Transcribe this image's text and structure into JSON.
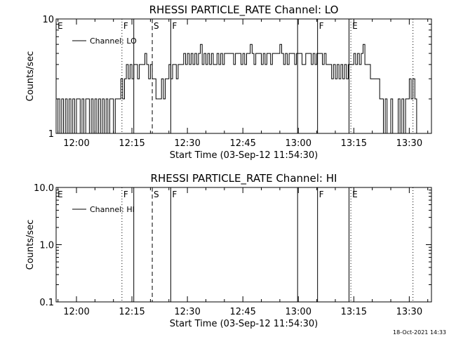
{
  "timestamp": "18-Oct-2021 14:33",
  "chart_data": [
    {
      "type": "line",
      "title": "RHESSI PARTICLE_RATE Channel: LO",
      "xlabel": "Start Time (03-Sep-12 11:54:30)",
      "ylabel": "Counts/sec",
      "x_ticks": [
        "12:00",
        "12:15",
        "12:30",
        "12:45",
        "13:00",
        "13:15",
        "13:30"
      ],
      "x_tick_minutes": [
        330,
        345,
        360,
        375,
        390,
        405,
        420
      ],
      "xlim_minutes": [
        324.5,
        426
      ],
      "y_scale": "log",
      "ylim": [
        1,
        10
      ],
      "y_ticks": [
        "1",
        "10"
      ],
      "y_tick_values": [
        1,
        10
      ],
      "legend": {
        "label": "Channel: LO",
        "placement": "top-left"
      },
      "markers": [
        {
          "label": "E",
          "minute": 324.5,
          "style": "none"
        },
        {
          "label": "F",
          "minute": 342.3,
          "style": "dotted"
        },
        {
          "label": "",
          "minute": 345.5,
          "style": "solid"
        },
        {
          "label": "S",
          "minute": 350.5,
          "style": "dashed"
        },
        {
          "label": "F",
          "minute": 355.5,
          "style": "solid"
        },
        {
          "label": "",
          "minute": 389.8,
          "style": "solid"
        },
        {
          "label": "F",
          "minute": 395.2,
          "style": "solid"
        },
        {
          "label": "",
          "minute": 403.7,
          "style": "solid"
        },
        {
          "label": "E",
          "minute": 404.2,
          "style": "dotted"
        },
        {
          "label": "",
          "minute": 421.0,
          "style": "dotted"
        }
      ],
      "series": [
        {
          "x_start_minute": 324.5,
          "x_step_minute": 0.5,
          "values": [
            1,
            2,
            1,
            2,
            1,
            2,
            1,
            2,
            1,
            2,
            1,
            2,
            2,
            1,
            2,
            1,
            2,
            2,
            1,
            2,
            1,
            2,
            1,
            2,
            1,
            2,
            1,
            2,
            1,
            2,
            2,
            1,
            2,
            2,
            2,
            3,
            2,
            3,
            4,
            3,
            4,
            3,
            4,
            4,
            3,
            4,
            4,
            4,
            5,
            4,
            3,
            4,
            3,
            3,
            2,
            2,
            2,
            3,
            2,
            3,
            3,
            4,
            3,
            4,
            4,
            3,
            4,
            4,
            4,
            5,
            4,
            5,
            4,
            5,
            4,
            5,
            4,
            5,
            6,
            4,
            5,
            4,
            5,
            4,
            5,
            4,
            4,
            5,
            4,
            5,
            4,
            5,
            5,
            5,
            5,
            5,
            4,
            5,
            5,
            5,
            4,
            5,
            4,
            5,
            5,
            6,
            5,
            4,
            5,
            5,
            5,
            4,
            5,
            4,
            5,
            5,
            4,
            5,
            5,
            5,
            5,
            6,
            5,
            4,
            5,
            4,
            5,
            5,
            5,
            4,
            5,
            5,
            5,
            4,
            4,
            5,
            5,
            5,
            4,
            5,
            4,
            5,
            5,
            5,
            4,
            5,
            4,
            4,
            4,
            3,
            4,
            3,
            4,
            3,
            4,
            3,
            4,
            3,
            4,
            4,
            4,
            5,
            4,
            5,
            4,
            5,
            6,
            4,
            4,
            4,
            3,
            3,
            3,
            3,
            3,
            2,
            2,
            1,
            2,
            1,
            1,
            2,
            1,
            1,
            1,
            2,
            1,
            2,
            1,
            2,
            2,
            3,
            2,
            3,
            2,
            1,
            1
          ]
        }
      ]
    },
    {
      "type": "line",
      "title": "RHESSI PARTICLE_RATE Channel: HI",
      "xlabel": "Start Time (03-Sep-12 11:54:30)",
      "ylabel": "Counts/sec",
      "x_ticks": [
        "12:00",
        "12:15",
        "12:30",
        "12:45",
        "13:00",
        "13:15",
        "13:30"
      ],
      "x_tick_minutes": [
        330,
        345,
        360,
        375,
        390,
        405,
        420
      ],
      "xlim_minutes": [
        324.5,
        426
      ],
      "y_scale": "log",
      "ylim": [
        0.1,
        10
      ],
      "y_ticks": [
        "0.1",
        "1.0",
        "10.0"
      ],
      "y_tick_values": [
        0.1,
        1,
        10
      ],
      "legend": {
        "label": "Channel: HI",
        "placement": "top-left"
      },
      "markers": [
        {
          "label": "E",
          "minute": 324.5,
          "style": "none"
        },
        {
          "label": "F",
          "minute": 342.3,
          "style": "dotted"
        },
        {
          "label": "",
          "minute": 345.5,
          "style": "solid"
        },
        {
          "label": "S",
          "minute": 350.5,
          "style": "dashed"
        },
        {
          "label": "F",
          "minute": 355.5,
          "style": "solid"
        },
        {
          "label": "",
          "minute": 389.8,
          "style": "solid"
        },
        {
          "label": "F",
          "minute": 395.2,
          "style": "solid"
        },
        {
          "label": "",
          "minute": 403.7,
          "style": "solid"
        },
        {
          "label": "E",
          "minute": 404.2,
          "style": "dotted"
        },
        {
          "label": "",
          "minute": 421.0,
          "style": "dotted"
        }
      ],
      "series": [
        {
          "x_start_minute": 324.5,
          "x_step_minute": 0.5,
          "values": []
        }
      ]
    }
  ]
}
